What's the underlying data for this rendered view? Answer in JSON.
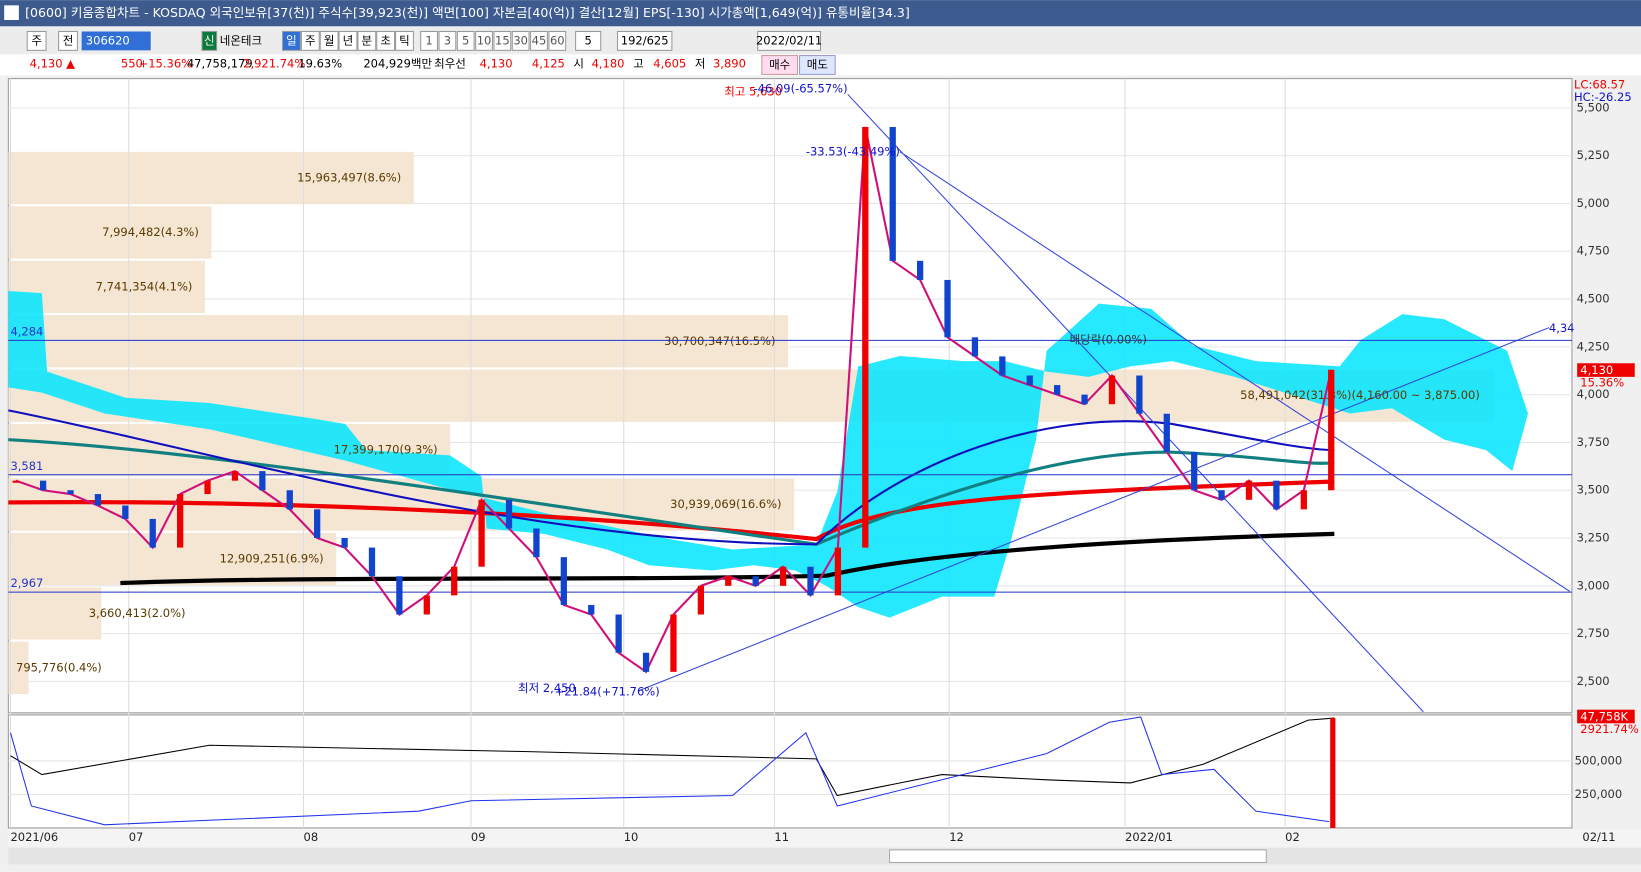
{
  "title_bar": {
    "text": "[0600] 키움종합차트 - KOSDAQ 외국인보유[37(천)] 주식수[39,923(천)] 액면[100] 자본금[40(억)] 결산[12월] EPS[-130] 시가총액[1,649(억)] 유통비율[34.3]"
  },
  "toolbar": {
    "period_type": "주",
    "range": "전",
    "code": "306620",
    "badge": "신",
    "name": "네온테크",
    "units": [
      "일",
      "주",
      "월",
      "년",
      "분",
      "초",
      "틱"
    ],
    "intervals": [
      "1",
      "3",
      "5",
      "10",
      "15",
      "30",
      "45",
      "60"
    ],
    "count": "5",
    "pages": "192/625",
    "date": "2022/02/11"
  },
  "quote": {
    "price": "4,130 ▲",
    "change": "550",
    "change_pct": "+15.36%",
    "volume": "47,758,179",
    "volume_pct": "2,921.74%",
    "turnover": "19.63%",
    "amount": "204,929백만",
    "best_label": "최우선",
    "ask": "4,130",
    "bid": "4,125",
    "open_label": "시",
    "open": "4,180",
    "high_label": "고",
    "high": "4,605",
    "low_label": "저",
    "low": "3,890",
    "buy": "매수",
    "sell": "매도"
  },
  "chart": {
    "price_ticks": [
      {
        "value": 2500,
        "label": "2,500"
      },
      {
        "value": 2750,
        "label": "2,750"
      },
      {
        "value": 3000,
        "label": "3,000"
      },
      {
        "value": 3250,
        "label": "3,250"
      },
      {
        "value": 3500,
        "label": "3,500"
      },
      {
        "value": 3750,
        "label": "3,750"
      },
      {
        "value": 4000,
        "label": "4,000"
      },
      {
        "value": 4250,
        "label": "4,250"
      },
      {
        "value": 4500,
        "label": "4,500"
      },
      {
        "value": 4750,
        "label": "4,750"
      },
      {
        "value": 5000,
        "label": "5,000"
      },
      {
        "value": 5250,
        "label": "5,250"
      },
      {
        "value": 5500,
        "label": "5,500"
      }
    ],
    "closes": [
      3550,
      3500,
      3480,
      3420,
      3350,
      3200,
      3480,
      3550,
      3600,
      3500,
      3400,
      3250,
      3200,
      3050,
      2850,
      2950,
      3100,
      3450,
      3300,
      3150,
      2900,
      2850,
      2650,
      2550,
      2850,
      3000,
      3050,
      3000,
      3100,
      2950,
      3200,
      5400,
      4700,
      4600,
      4300,
      4200,
      4100,
      4050,
      4000,
      3950,
      4100,
      3900,
      3700,
      3500,
      3450,
      3550,
      3400,
      3500,
      4130
    ],
    "lines": [
      {
        "value": 4284,
        "label": "4,284"
      },
      {
        "value": 3581,
        "label": "3,581"
      },
      {
        "value": 2967,
        "label": "2,967"
      }
    ],
    "profile": [
      {
        "value": 15963497,
        "label": "15,963,497(8.6%)"
      },
      {
        "value": 7994482,
        "label": "7,994,482(4.3%)"
      },
      {
        "value": 7741354,
        "label": "7,741,354(4.1%)"
      },
      {
        "value": 30700347,
        "label": "30,700,347(16.5%)"
      },
      {
        "value": 58491042,
        "label": "58,491,042(31.3%)(4,160.00 ~ 3,875.00)"
      },
      {
        "value": 17399170,
        "label": "17,399,170(9.3%)"
      },
      {
        "value": 30939069,
        "label": "30,939,069(16.6%)"
      },
      {
        "value": 12909251,
        "label": "12,909,251(6.9%)"
      },
      {
        "value": 3660413,
        "label": "3,660,413(2.0%)"
      },
      {
        "value": 795776,
        "label": "795,776(0.4%)"
      }
    ],
    "annotations": {
      "high": "최고 5,630",
      "high_change": "-46.09(-65.57%)",
      "drop": "-33.53(-43.49%)",
      "low": "최저 2,450",
      "low_change": "+21.84(+71.76%)",
      "dividend": "배당락(0.00%)"
    },
    "dates": [
      "2021/06",
      "07",
      "08",
      "09",
      "10",
      "11",
      "12",
      "2022/01",
      "02",
      "02/11"
    ],
    "indicator": {
      "lc": "LC:68.57",
      "hc": "HC:-26.25",
      "last": "4,130",
      "last_pct": "15.36%",
      "right_edge": "4,34"
    },
    "volume": {
      "ticks": [
        {
          "value": 250000,
          "label": "250,000"
        },
        {
          "value": 500000,
          "label": "500,000"
        }
      ],
      "last": "47,758K",
      "last_pct": "2921.74%"
    }
  }
}
